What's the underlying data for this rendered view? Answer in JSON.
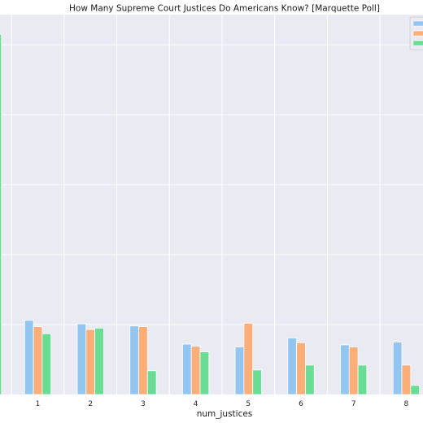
{
  "chart_data": {
    "type": "bar",
    "title": "How Many Supreme Court Justices Do Americans Know? [Marquette Poll]",
    "xlabel": "num_justices",
    "ylabel": "",
    "categories": [
      "1",
      "2",
      "3",
      "4",
      "5",
      "6",
      "7",
      "8"
    ],
    "visible_partial_category": "0",
    "partial_category_value": 0.515,
    "series": [
      {
        "color": "#92c6f0",
        "values": [
          0.106,
          0.101,
          0.098,
          0.072,
          0.068,
          0.081,
          0.071,
          0.075
        ]
      },
      {
        "color": "#fbae78",
        "values": [
          0.097,
          0.093,
          0.097,
          0.069,
          0.102,
          0.074,
          0.068,
          0.042
        ]
      },
      {
        "color": "#69dd94",
        "values": [
          0.087,
          0.095,
          0.034,
          0.061,
          0.035,
          0.042,
          0.042,
          0.013
        ]
      }
    ],
    "ylim": [
      0,
      0.52
    ],
    "grid": true,
    "legend": "top-right",
    "colors": {
      "background": "#eaeaf2",
      "grid": "#ffffff"
    }
  }
}
